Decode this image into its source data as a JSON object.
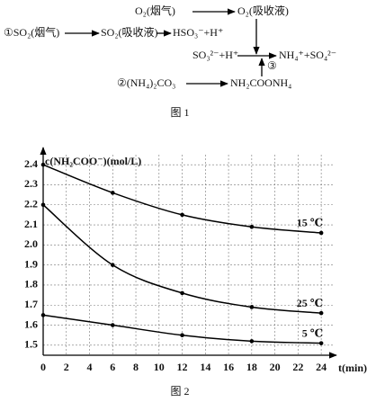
{
  "figure1": {
    "caption": "图 1",
    "nodes": [
      {
        "label": "①SO₂(烟气)"
      },
      {
        "label": "SO₂(吸收液)"
      },
      {
        "label": "HSO₃⁻+H⁺"
      },
      {
        "label": "O₂(烟气)"
      },
      {
        "label": "O₂(吸收液)"
      },
      {
        "label": "SO₃²⁻+H⁺"
      },
      {
        "label": "NH₄⁺+SO₄²⁻"
      },
      {
        "label": "②(NH₄)₂CO₃"
      },
      {
        "label": "NH₂COONH₄"
      }
    ],
    "step_label": "③"
  },
  "chart_data": {
    "type": "line",
    "caption": "图 2",
    "y_label": "c(NH₂COO⁻)(mol/L)",
    "x_label": "t(min)",
    "x": [
      0,
      6,
      12,
      18,
      24
    ],
    "series": [
      {
        "name": "15 ℃",
        "color": "#000000",
        "values": [
          2.4,
          2.26,
          2.15,
          2.09,
          2.06
        ]
      },
      {
        "name": "25 ℃",
        "color": "#000000",
        "values": [
          2.2,
          1.9,
          1.76,
          1.69,
          1.66
        ]
      },
      {
        "name": "5 ℃",
        "color": "#000000",
        "values": [
          1.65,
          1.6,
          1.55,
          1.52,
          1.51
        ]
      }
    ],
    "xlim": [
      0,
      25
    ],
    "xticks": [
      0,
      2,
      4,
      6,
      8,
      10,
      12,
      14,
      16,
      18,
      20,
      22,
      24
    ],
    "ylim": [
      1.45,
      2.45
    ],
    "yticks": [
      1.5,
      1.6,
      1.7,
      1.8,
      1.9,
      {
        "value": 2.0,
        "label": "2.0"
      },
      2.1,
      2.2,
      2.3,
      2.4
    ],
    "grid": true
  }
}
